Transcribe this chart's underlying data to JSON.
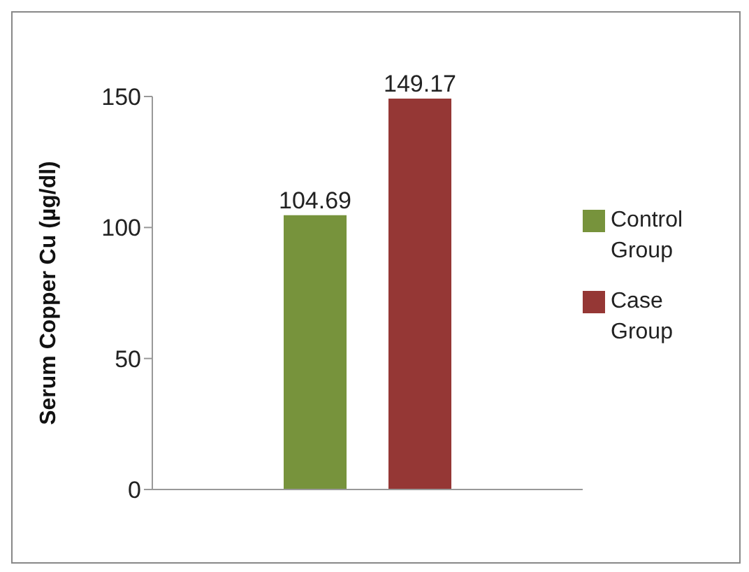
{
  "chart_data": {
    "type": "bar",
    "ylabel": "Serum  Copper Cu (µg/dl)",
    "categories": [
      null
    ],
    "series": [
      {
        "name": "Control Group",
        "color": "#77933c",
        "values": [
          104.69
        ]
      },
      {
        "name": "Case Group",
        "color": "#953735",
        "values": [
          149.17
        ]
      }
    ],
    "ylim": [
      0,
      150
    ],
    "yticks": [
      0,
      50,
      100,
      150
    ],
    "data_labels": true,
    "legend": "right"
  }
}
